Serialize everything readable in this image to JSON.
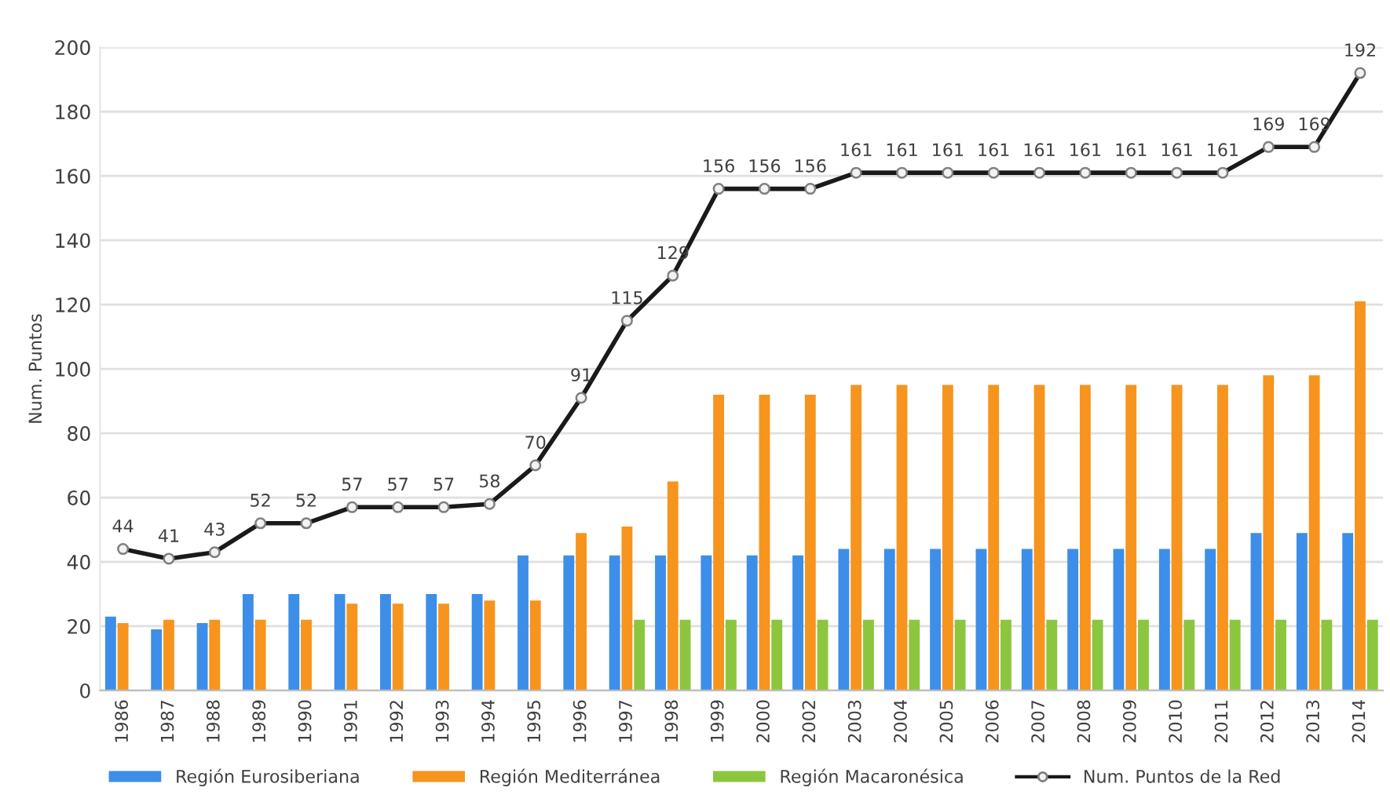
{
  "chart_data": {
    "type": "bar",
    "categories": [
      "1986",
      "1987",
      "1988",
      "1989",
      "1990",
      "1991",
      "1992",
      "1993",
      "1994",
      "1995",
      "1996",
      "1997",
      "1998",
      "1999",
      "2000",
      "2002",
      "2003",
      "2004",
      "2005",
      "2006",
      "2007",
      "2008",
      "2009",
      "2010",
      "2011",
      "2012",
      "2013",
      "2014"
    ],
    "series": [
      {
        "name": "Región Eurosiberiana",
        "color": "#3d8ee8",
        "values": [
          23,
          19,
          21,
          30,
          30,
          30,
          30,
          30,
          30,
          42,
          42,
          42,
          42,
          42,
          42,
          42,
          44,
          44,
          44,
          44,
          44,
          44,
          44,
          44,
          44,
          49,
          49,
          49
        ]
      },
      {
        "name": "Región Mediterránea",
        "color": "#f7941d",
        "values": [
          21,
          22,
          22,
          22,
          22,
          27,
          27,
          27,
          28,
          28,
          49,
          51,
          65,
          92,
          92,
          92,
          95,
          95,
          95,
          95,
          95,
          95,
          95,
          95,
          95,
          98,
          98,
          121
        ]
      },
      {
        "name": "Región Macaronésica",
        "color": "#8cc63f",
        "values": [
          null,
          null,
          null,
          null,
          null,
          null,
          null,
          null,
          null,
          null,
          null,
          22,
          22,
          22,
          22,
          22,
          22,
          22,
          22,
          22,
          22,
          22,
          22,
          22,
          22,
          22,
          22,
          22
        ]
      },
      {
        "name": "Num. Puntos de la Red",
        "type": "line",
        "color": "#1a1a1a",
        "marker": "circle",
        "line_style": "solid",
        "values": [
          44,
          41,
          43,
          52,
          52,
          57,
          57,
          57,
          58,
          70,
          91,
          115,
          129,
          156,
          156,
          156,
          161,
          161,
          161,
          161,
          161,
          161,
          161,
          161,
          161,
          169,
          169,
          192
        ],
        "value_labels": [
          "44",
          "41",
          "43",
          "52",
          "52",
          "57",
          "57",
          "57",
          "58",
          "70",
          "91",
          "115",
          "129",
          "156",
          "156",
          "156",
          "161",
          "161",
          "161",
          "161",
          "161",
          "161",
          "161",
          "161",
          "161",
          "169",
          "169",
          "192"
        ]
      }
    ],
    "ylabel": "Num. Puntos",
    "ylim": [
      0,
      200
    ],
    "yticks": [
      0,
      20,
      40,
      60,
      80,
      100,
      120,
      140,
      160,
      180,
      200
    ],
    "grid": "y",
    "legend": "bottom"
  }
}
